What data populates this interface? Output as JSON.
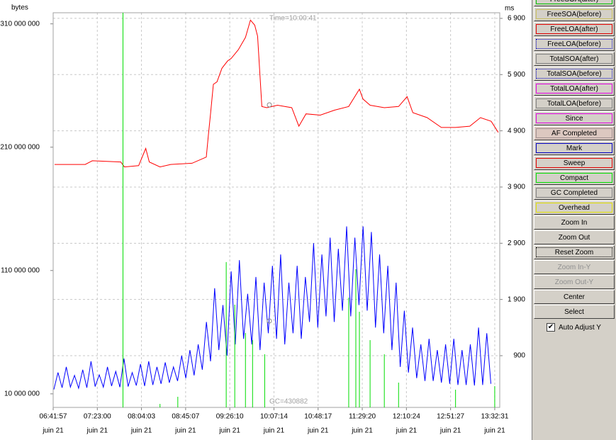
{
  "chart_data": {
    "type": "line",
    "y_label": "bytes",
    "y2_label": "ms",
    "xlim": [
      24117,
      49030
    ],
    "ylim": [
      -1000000,
      319000000
    ],
    "y2lim": [
      -20,
      7000
    ],
    "xticks": [
      {
        "value": 24117,
        "label": "06:41:57"
      },
      {
        "value": 26580,
        "label": "07:23:00"
      },
      {
        "value": 29043,
        "label": "08:04:03"
      },
      {
        "value": 31507,
        "label": "08:45:07"
      },
      {
        "value": 33970,
        "label": "09:26:10"
      },
      {
        "value": 36434,
        "label": "10:07:14"
      },
      {
        "value": 38897,
        "label": "10:48:17"
      },
      {
        "value": 41360,
        "label": "11:29:20"
      },
      {
        "value": 43824,
        "label": "12:10:24"
      },
      {
        "value": 46287,
        "label": "12:51:27"
      },
      {
        "value": 48751,
        "label": "13:32:31"
      }
    ],
    "xtick_dates": [
      "juin 21",
      "juin 21",
      "juin 21",
      "juin 21",
      "juin 21",
      "juin 21",
      "juin 21",
      "juin 21",
      "juin 21",
      "juin 21",
      "juin 21"
    ],
    "yticks": [
      {
        "value": 10000000,
        "label": "10 000 000"
      },
      {
        "value": 110000000,
        "label": "110 000 000"
      },
      {
        "value": 210000000,
        "label": "210 000 000"
      },
      {
        "value": 310000000,
        "label": "310 000 000"
      }
    ],
    "y2ticks": [
      900,
      {
        "value": 1900,
        "label": "1 900"
      },
      {
        "value": 2900,
        "label": "2 900"
      },
      {
        "value": 3900,
        "label": "3 900"
      },
      {
        "value": 4900,
        "label": "4 900"
      },
      {
        "value": 5900,
        "label": "5 900"
      },
      {
        "value": 6900,
        "label": "6 900"
      }
    ],
    "grid": true,
    "series": [
      {
        "color": "#ff0000",
        "style": "line",
        "x": [
          24196,
          25905,
          26303,
          27891,
          28090,
          28885,
          29282,
          29481,
          30077,
          30672,
          31864,
          32659,
          32778,
          32897,
          33056,
          33255,
          33533,
          33851,
          34050,
          34447,
          34844,
          35122,
          35360,
          35520,
          35758,
          36036,
          36632,
          37427,
          37824,
          38221,
          39016,
          39810,
          40605,
          41201,
          41400,
          41797,
          42591,
          43386,
          43863,
          44180,
          44975,
          45770,
          46564,
          47359,
          47955,
          48551,
          48948
        ],
        "values": [
          196000000,
          196000000,
          199000000,
          198000000,
          194000000,
          195000000,
          209000000,
          198000000,
          194000000,
          196000000,
          197000000,
          202000000,
          220000000,
          237000000,
          261000000,
          263000000,
          274000000,
          280000000,
          282000000,
          289000000,
          299000000,
          313000000,
          309000000,
          300000000,
          243000000,
          242000000,
          244000000,
          242000000,
          227000000,
          237000000,
          236000000,
          240000000,
          243000000,
          257000000,
          249000000,
          244000000,
          242000000,
          243000000,
          251000000,
          238000000,
          234000000,
          226000000,
          226000000,
          227000000,
          234000000,
          231000000,
          222000000
        ]
      },
      {
        "color": "#0000ff",
        "style": "line",
        "axis": "y2",
        "x": [
          24157,
          24387,
          24617,
          24847,
          25077,
          25307,
          25537,
          25767,
          25997,
          26227,
          26457,
          26687,
          26917,
          27147,
          27377,
          27607,
          27837,
          28067,
          28297,
          28527,
          28757,
          28987,
          29217,
          29447,
          29677,
          29907,
          30137,
          30367,
          30597,
          30827,
          31057,
          31287,
          31517,
          31747,
          31977,
          32207,
          32437,
          32667,
          32897,
          33127,
          33357,
          33587,
          33817,
          34047,
          34277,
          34507,
          34737,
          34967,
          35197,
          35427,
          35657,
          35887,
          36117,
          36347,
          36577,
          36807,
          37037,
          37267,
          37497,
          37727,
          37957,
          38187,
          38417,
          38647,
          38877,
          39107,
          39337,
          39567,
          39797,
          40027,
          40257,
          40487,
          40717,
          40947,
          41177,
          41407,
          41637,
          41867,
          42097,
          42327,
          42557,
          42787,
          43017,
          43247,
          43477,
          43707,
          43937,
          44167,
          44397,
          44627,
          44857,
          45087,
          45317,
          45547,
          45777,
          46007,
          46237,
          46467,
          46697,
          46927,
          47157,
          47387,
          47617,
          47847,
          48077,
          48307,
          48537
        ],
        "values": [
          300,
          600,
          330,
          700,
          340,
          550,
          320,
          650,
          330,
          800,
          350,
          560,
          340,
          700,
          360,
          620,
          340,
          850,
          350,
          600,
          370,
          750,
          360,
          800,
          380,
          700,
          400,
          780,
          420,
          700,
          450,
          900,
          500,
          1000,
          550,
          1100,
          650,
          1500,
          800,
          2100,
          1000,
          1800,
          900,
          2400,
          1100,
          2600,
          1200,
          2000,
          1100,
          2300,
          1000,
          2200,
          1300,
          2500,
          1200,
          2700,
          1100,
          2200,
          1300,
          2500,
          1200,
          2300,
          1500,
          2900,
          1400,
          2700,
          1600,
          3000,
          1500,
          2800,
          1700,
          3200,
          1600,
          3000,
          1800,
          3200,
          1700,
          3100,
          1400,
          2700,
          1300,
          2500,
          1000,
          2200,
          700,
          1700,
          600,
          1400,
          500,
          1100,
          450,
          1200,
          450,
          1000,
          420,
          1100,
          400,
          1200,
          380,
          1000,
          380,
          1100,
          370,
          1400,
          380,
          1300,
          400
        ]
      },
      {
        "color": "#00dd00",
        "style": "spikes",
        "axis": "y2",
        "x": [
          28011,
          30077,
          31070,
          33771,
          34248,
          34844,
          35241,
          35917,
          40605,
          41002,
          41201,
          41797,
          42591,
          43386,
          46564,
          48750
        ],
        "values": [
          7000,
          42,
          169,
          2565,
          1808,
          1304,
          1177,
          925,
          1934,
          2438,
          1682,
          1177,
          925,
          421,
          295,
          358
        ]
      }
    ],
    "annotations": [
      "Time=10:00:41",
      "GC=430882"
    ]
  },
  "controls": {
    "buttons": [
      "FreeSOA(after)",
      "FreeSOA(before)",
      "FreeLOA(after)",
      "FreeLOA(before)",
      "TotalSOA(after)",
      "TotalSOA(before)",
      "TotalLOA(after)",
      "TotalLOA(before)",
      "Since",
      "AF Completed",
      "Mark",
      "Sweep",
      "Compact",
      "GC Completed",
      "Overhead",
      "Zoom In",
      "Zoom Out",
      "Reset Zoom",
      "Zoom In-Y",
      "Zoom Out-Y",
      "Center",
      "Select"
    ],
    "checkbox": "Auto Adjust Y"
  }
}
